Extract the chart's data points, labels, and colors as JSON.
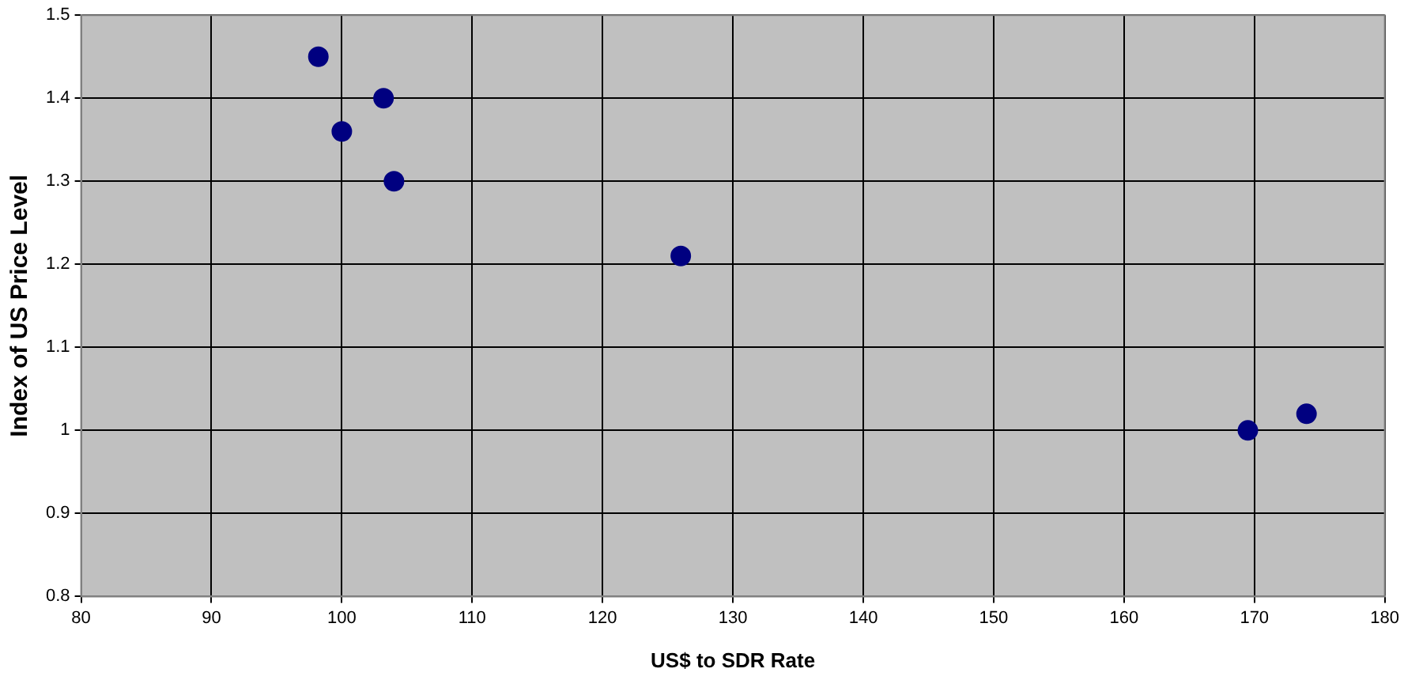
{
  "chart_data": {
    "type": "scatter",
    "xlabel": "US$ to SDR Rate",
    "ylabel": "Index of US Price Level",
    "x": [
      98.2,
      103.2,
      100,
      104,
      126,
      169.5,
      174
    ],
    "series": [
      {
        "color": "#000080",
        "values": [
          1.45,
          1.4,
          1.36,
          1.3,
          1.21,
          1.0,
          1.02
        ]
      }
    ],
    "xlim": [
      80,
      180
    ],
    "xticks": [
      80,
      90,
      100,
      110,
      120,
      130,
      140,
      150,
      160,
      170,
      180
    ],
    "ylim": [
      0.8,
      1.5
    ],
    "yticks": [
      0.8,
      0.9,
      1,
      1.1,
      1.2,
      1.3,
      1.4,
      1.5
    ],
    "grid": true,
    "legend": false,
    "marker": "circle"
  }
}
